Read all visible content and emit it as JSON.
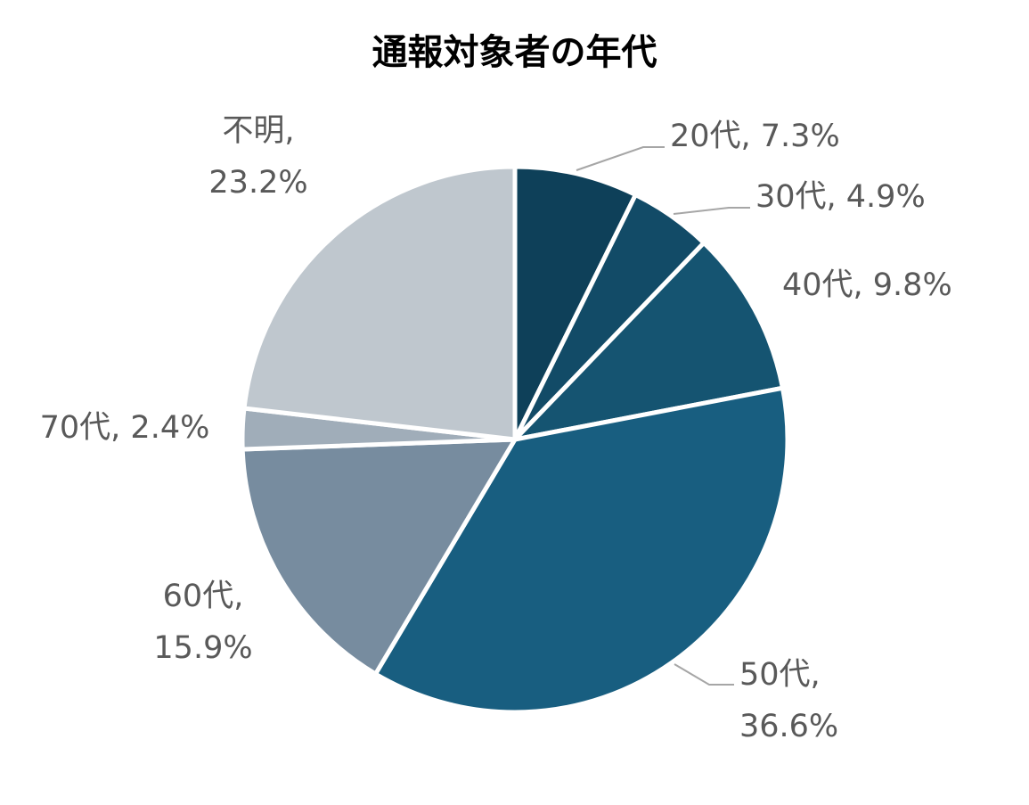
{
  "chart_data": {
    "type": "pie",
    "title": "通報対象者の年代",
    "legend": "none",
    "slices": [
      {
        "label": "20代",
        "value": 7.3,
        "value_text": "7.3%",
        "color": "#0e4059"
      },
      {
        "label": "30代",
        "value": 4.9,
        "value_text": "4.9%",
        "color": "#124b67"
      },
      {
        "label": "40代",
        "value": 9.8,
        "value_text": "9.8%",
        "color": "#155471"
      },
      {
        "label": "50代",
        "value": 36.6,
        "value_text": "36.6%",
        "color": "#185e80"
      },
      {
        "label": "60代",
        "value": 15.9,
        "value_text": "15.9%",
        "color": "#778c9f"
      },
      {
        "label": "70代",
        "value": 2.4,
        "value_text": "2.4%",
        "color": "#a0adb9"
      },
      {
        "label": "不明",
        "value": 23.2,
        "value_text": "23.2%",
        "color": "#bfc7ce"
      }
    ],
    "leader_line_color": "#a6a6a6",
    "label_color": "#595959"
  }
}
